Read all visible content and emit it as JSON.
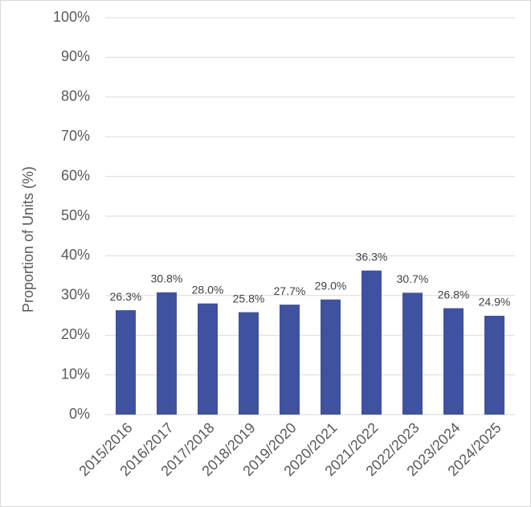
{
  "chart_data": {
    "type": "bar",
    "y_label": "Proportion of Units (%)",
    "categories": [
      "2015/2016",
      "2016/2017",
      "2017/2018",
      "2018/2019",
      "2019/2020",
      "2020/2021",
      "2021/2022",
      "2022/2023",
      "2023/2024",
      "2024/2025"
    ],
    "values": [
      26.3,
      30.8,
      28.0,
      25.8,
      27.7,
      29.0,
      36.3,
      30.7,
      26.8,
      24.9
    ],
    "value_labels": [
      "26.3%",
      "30.8%",
      "28.0%",
      "25.8%",
      "27.7%",
      "29.0%",
      "36.3%",
      "30.7%",
      "26.8%",
      "24.9%"
    ],
    "color": "#3f529f",
    "ylim": [
      0,
      100
    ],
    "yticks": [
      {
        "value": 0,
        "label": "0%"
      },
      {
        "value": 10,
        "label": "10%"
      },
      {
        "value": 20,
        "label": "20%"
      },
      {
        "value": 30,
        "label": "30%"
      },
      {
        "value": 40,
        "label": "40%"
      },
      {
        "value": 50,
        "label": "50%"
      },
      {
        "value": 60,
        "label": "60%"
      },
      {
        "value": 70,
        "label": "70%"
      },
      {
        "value": 80,
        "label": "80%"
      },
      {
        "value": 90,
        "label": "90%"
      },
      {
        "value": 100,
        "label": "100%"
      }
    ],
    "grid": true
  }
}
